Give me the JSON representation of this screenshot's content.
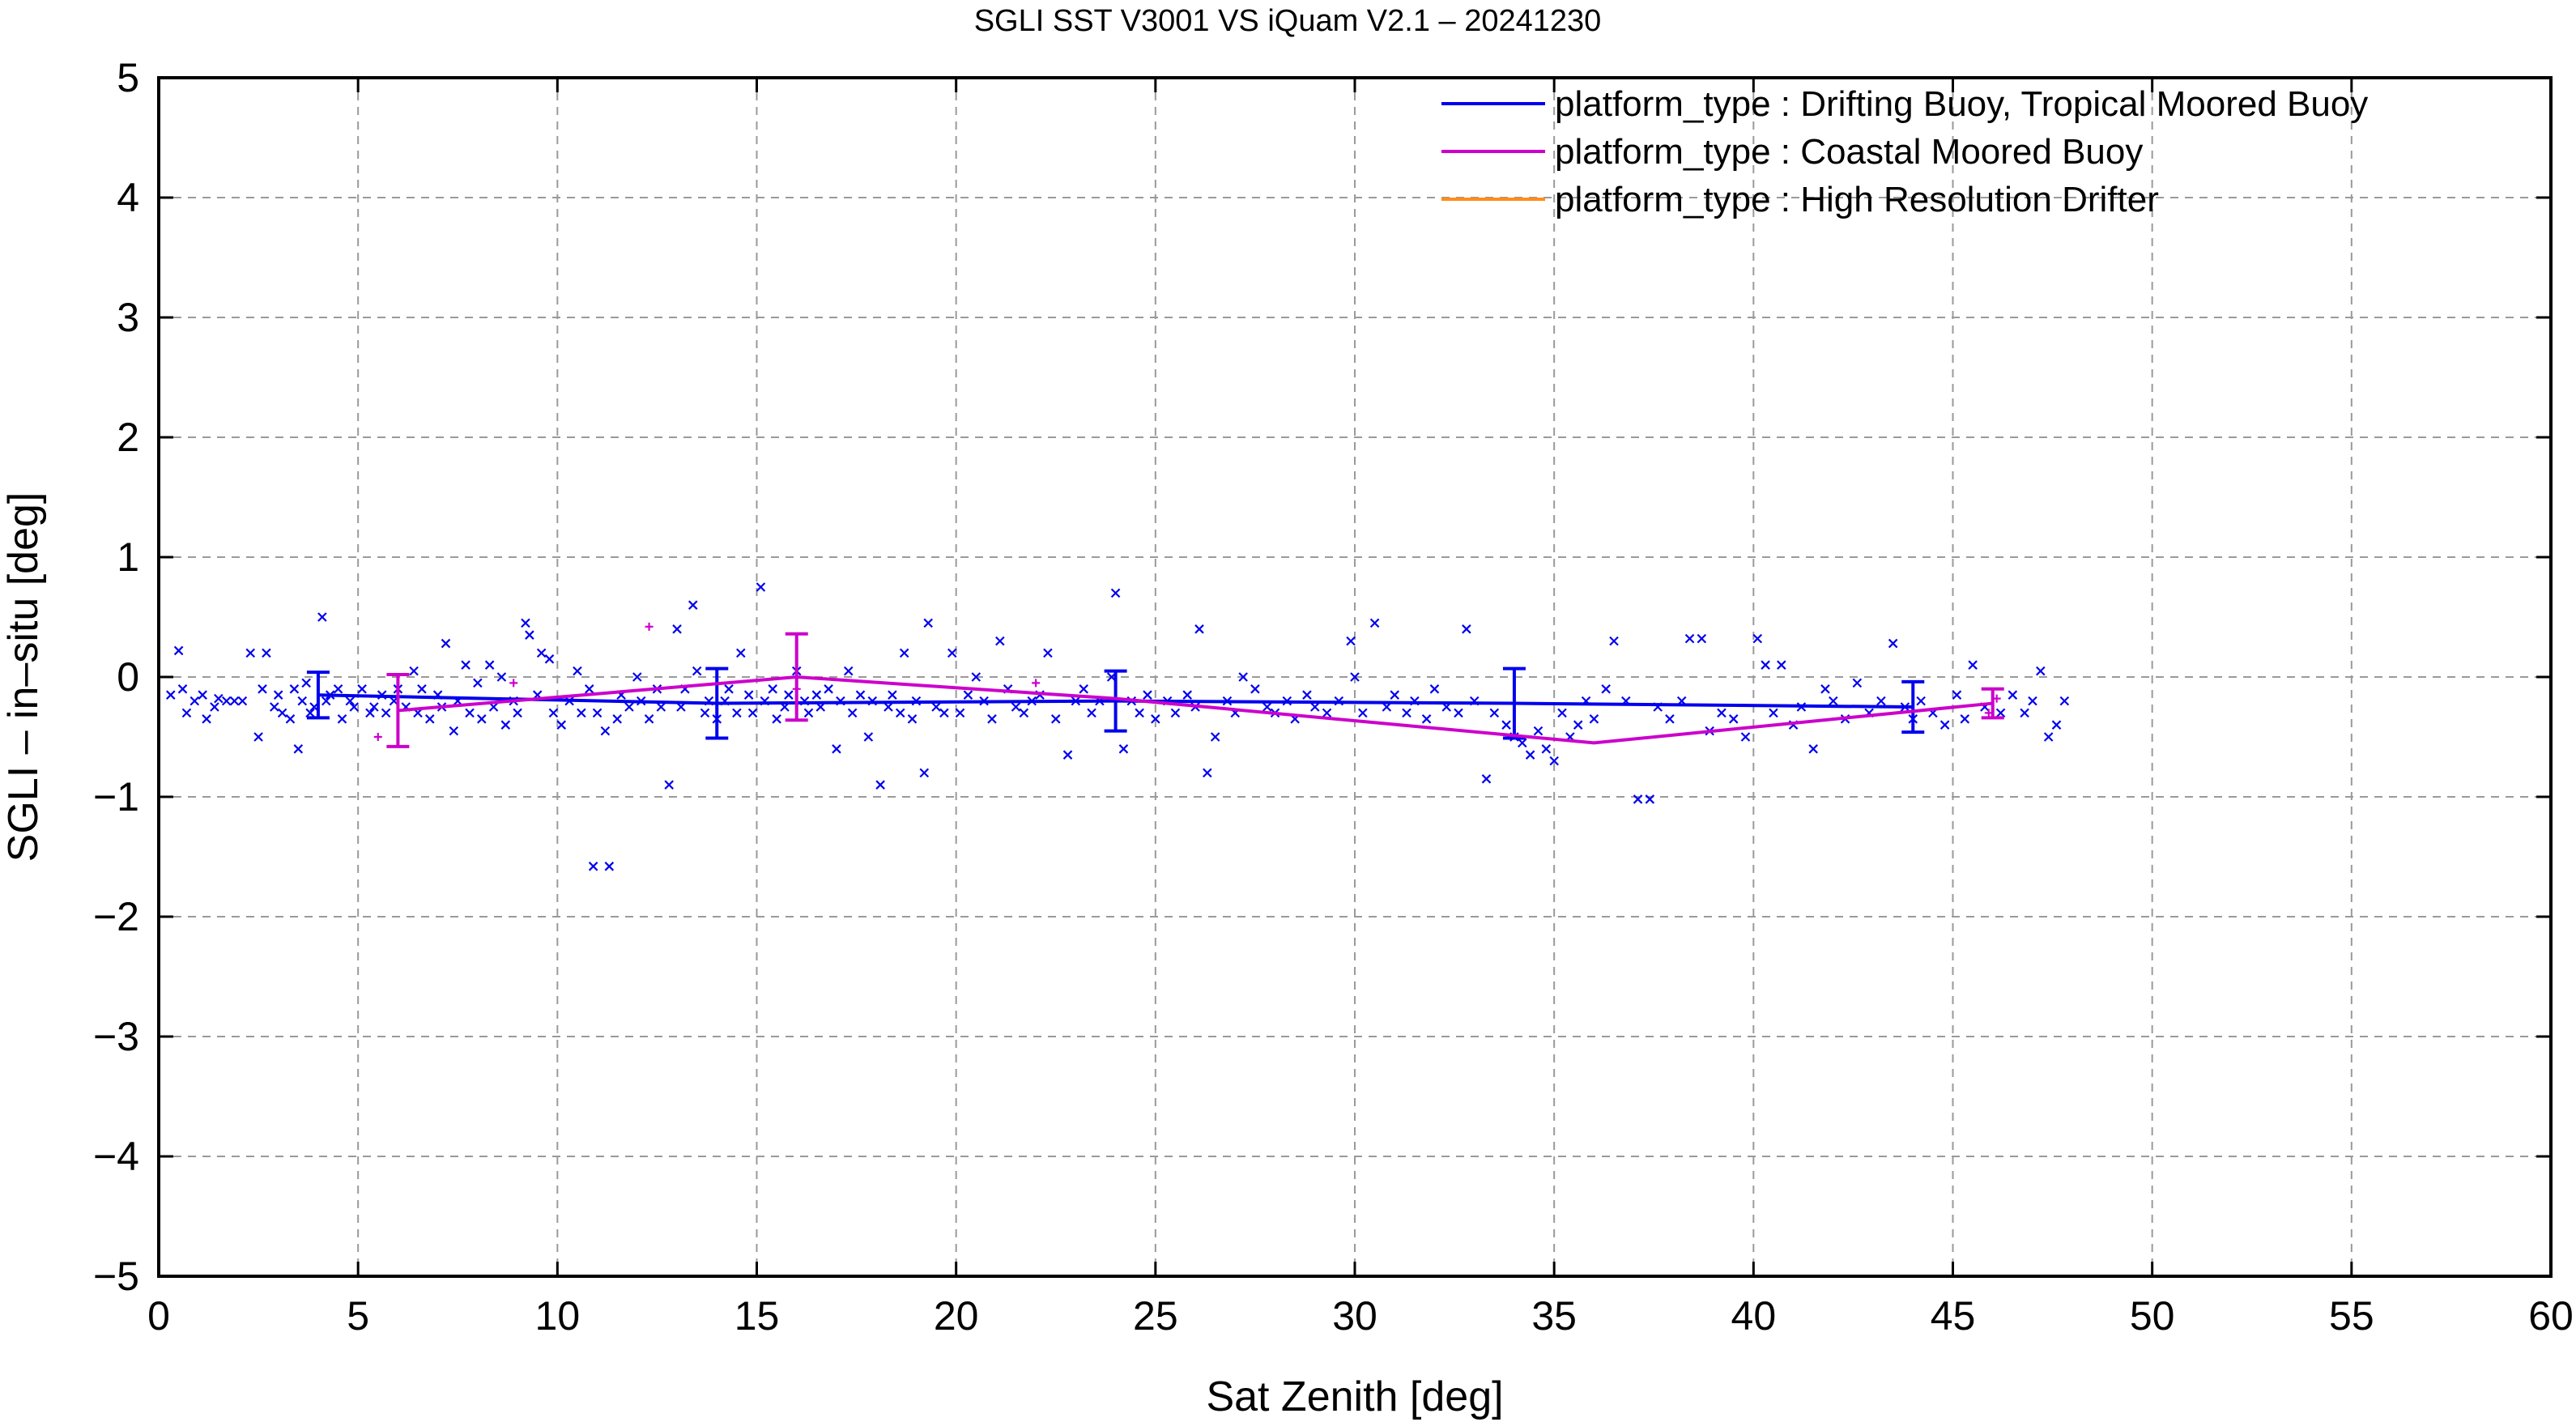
{
  "chart_data": {
    "type": "scatter",
    "title": "SGLI SST V3001 VS iQuam V2.1  – 20241230",
    "xlabel": "Sat Zenith [deg]",
    "ylabel": "SGLI – in–situ [deg]",
    "xlim": [
      0,
      60
    ],
    "ylim": [
      -5,
      5
    ],
    "xticks": [
      0,
      5,
      10,
      15,
      20,
      25,
      30,
      35,
      40,
      45,
      50,
      55,
      60
    ],
    "yticks": [
      -5,
      -4,
      -3,
      -2,
      -1,
      0,
      1,
      2,
      3,
      4,
      5
    ],
    "xtick_labels": [
      "0",
      "5",
      "10",
      "15",
      "20",
      "25",
      "30",
      "35",
      "40",
      "45",
      "50",
      "55",
      "60"
    ],
    "ytick_labels": [
      "−5",
      "−4",
      "−3",
      "−2",
      "−1",
      "0",
      "1",
      "2",
      "3",
      "4",
      "5"
    ],
    "grid": true,
    "legend_position": "top-right",
    "series": [
      {
        "name": "platform_type : Drifting Buoy, Tropical Moored Buoy",
        "color": "#0000ee",
        "marker": "x",
        "mean_line": {
          "x": [
            4,
            14,
            24,
            34,
            44
          ],
          "y": [
            -0.15,
            -0.22,
            -0.2,
            -0.22,
            -0.25
          ],
          "err": [
            0.19,
            0.29,
            0.25,
            0.29,
            0.21
          ]
        },
        "points": [
          [
            0.3,
            -0.15
          ],
          [
            0.5,
            0.22
          ],
          [
            0.6,
            -0.1
          ],
          [
            0.7,
            -0.3
          ],
          [
            0.9,
            -0.2
          ],
          [
            1.1,
            -0.15
          ],
          [
            1.2,
            -0.35
          ],
          [
            1.4,
            -0.25
          ],
          [
            1.5,
            -0.18
          ],
          [
            1.7,
            -0.2
          ],
          [
            1.9,
            -0.2
          ],
          [
            2.1,
            -0.2
          ],
          [
            2.3,
            0.2
          ],
          [
            2.5,
            -0.5
          ],
          [
            2.6,
            -0.1
          ],
          [
            2.7,
            0.2
          ],
          [
            2.9,
            -0.25
          ],
          [
            3.0,
            -0.15
          ],
          [
            3.1,
            -0.3
          ],
          [
            3.3,
            -0.35
          ],
          [
            3.4,
            -0.1
          ],
          [
            3.5,
            -0.6
          ],
          [
            3.6,
            -0.2
          ],
          [
            3.7,
            -0.05
          ],
          [
            3.8,
            -0.3
          ],
          [
            3.9,
            -0.25
          ],
          [
            4.1,
            0.5
          ],
          [
            4.2,
            -0.2
          ],
          [
            4.3,
            -0.15
          ],
          [
            4.5,
            -0.1
          ],
          [
            4.6,
            -0.35
          ],
          [
            4.8,
            -0.2
          ],
          [
            4.9,
            -0.25
          ],
          [
            5.1,
            -0.1
          ],
          [
            5.3,
            -0.3
          ],
          [
            5.4,
            -0.25
          ],
          [
            5.6,
            -0.15
          ],
          [
            5.7,
            -0.3
          ],
          [
            5.9,
            -0.2
          ],
          [
            6.0,
            -0.1
          ],
          [
            6.2,
            -0.25
          ],
          [
            6.4,
            0.05
          ],
          [
            6.5,
            -0.3
          ],
          [
            6.6,
            -0.1
          ],
          [
            6.8,
            -0.35
          ],
          [
            7.0,
            -0.15
          ],
          [
            7.1,
            -0.25
          ],
          [
            7.2,
            0.28
          ],
          [
            7.4,
            -0.45
          ],
          [
            7.5,
            -0.2
          ],
          [
            7.7,
            0.1
          ],
          [
            7.8,
            -0.3
          ],
          [
            8.0,
            -0.05
          ],
          [
            8.1,
            -0.35
          ],
          [
            8.3,
            0.1
          ],
          [
            8.4,
            -0.25
          ],
          [
            8.6,
            0.0
          ],
          [
            8.7,
            -0.4
          ],
          [
            8.9,
            -0.2
          ],
          [
            9.0,
            -0.3
          ],
          [
            9.2,
            0.45
          ],
          [
            9.3,
            0.35
          ],
          [
            9.5,
            -0.15
          ],
          [
            9.6,
            0.2
          ],
          [
            9.8,
            0.15
          ],
          [
            9.9,
            -0.3
          ],
          [
            10.1,
            -0.4
          ],
          [
            10.3,
            -0.2
          ],
          [
            10.5,
            0.05
          ],
          [
            10.6,
            -0.3
          ],
          [
            10.8,
            -0.1
          ],
          [
            10.9,
            -1.58
          ],
          [
            11.0,
            -0.3
          ],
          [
            11.2,
            -0.45
          ],
          [
            11.3,
            -1.58
          ],
          [
            11.5,
            -0.35
          ],
          [
            11.6,
            -0.15
          ],
          [
            11.8,
            -0.25
          ],
          [
            12.0,
            0.0
          ],
          [
            12.1,
            -0.2
          ],
          [
            12.3,
            -0.35
          ],
          [
            12.5,
            -0.1
          ],
          [
            12.6,
            -0.25
          ],
          [
            12.8,
            -0.9
          ],
          [
            13.0,
            0.4
          ],
          [
            13.1,
            -0.25
          ],
          [
            13.2,
            -0.1
          ],
          [
            13.4,
            0.6
          ],
          [
            13.5,
            0.05
          ],
          [
            13.7,
            -0.3
          ],
          [
            13.8,
            -0.2
          ],
          [
            14.0,
            -0.35
          ],
          [
            14.2,
            -0.2
          ],
          [
            14.3,
            -0.1
          ],
          [
            14.5,
            -0.3
          ],
          [
            14.6,
            0.2
          ],
          [
            14.8,
            -0.15
          ],
          [
            14.9,
            -0.3
          ],
          [
            15.1,
            0.75
          ],
          [
            15.2,
            -0.2
          ],
          [
            15.4,
            -0.1
          ],
          [
            15.5,
            -0.35
          ],
          [
            15.7,
            -0.25
          ],
          [
            15.8,
            -0.15
          ],
          [
            16.0,
            0.05
          ],
          [
            16.2,
            -0.2
          ],
          [
            16.3,
            -0.3
          ],
          [
            16.5,
            -0.15
          ],
          [
            16.6,
            -0.25
          ],
          [
            16.8,
            -0.1
          ],
          [
            17.0,
            -0.6
          ],
          [
            17.1,
            -0.2
          ],
          [
            17.3,
            0.05
          ],
          [
            17.4,
            -0.3
          ],
          [
            17.6,
            -0.15
          ],
          [
            17.8,
            -0.5
          ],
          [
            17.9,
            -0.2
          ],
          [
            18.1,
            -0.9
          ],
          [
            18.3,
            -0.25
          ],
          [
            18.4,
            -0.15
          ],
          [
            18.6,
            -0.3
          ],
          [
            18.7,
            0.2
          ],
          [
            18.9,
            -0.35
          ],
          [
            19.0,
            -0.2
          ],
          [
            19.2,
            -0.8
          ],
          [
            19.3,
            0.45
          ],
          [
            19.5,
            -0.25
          ],
          [
            19.7,
            -0.3
          ],
          [
            19.9,
            0.2
          ],
          [
            20.1,
            -0.3
          ],
          [
            20.3,
            -0.15
          ],
          [
            20.5,
            0.0
          ],
          [
            20.7,
            -0.2
          ],
          [
            20.9,
            -0.35
          ],
          [
            21.1,
            0.3
          ],
          [
            21.3,
            -0.1
          ],
          [
            21.5,
            -0.25
          ],
          [
            21.7,
            -0.3
          ],
          [
            21.9,
            -0.2
          ],
          [
            22.1,
            -0.15
          ],
          [
            22.3,
            0.2
          ],
          [
            22.5,
            -0.35
          ],
          [
            22.8,
            -0.65
          ],
          [
            23.0,
            -0.2
          ],
          [
            23.2,
            -0.1
          ],
          [
            23.4,
            -0.3
          ],
          [
            23.6,
            -0.2
          ],
          [
            23.9,
            0.0
          ],
          [
            24.0,
            0.7
          ],
          [
            24.2,
            -0.6
          ],
          [
            24.4,
            -0.2
          ],
          [
            24.6,
            -0.3
          ],
          [
            24.8,
            -0.15
          ],
          [
            25.0,
            -0.35
          ],
          [
            25.3,
            -0.2
          ],
          [
            25.5,
            -0.3
          ],
          [
            25.8,
            -0.15
          ],
          [
            26.0,
            -0.25
          ],
          [
            26.1,
            0.4
          ],
          [
            26.3,
            -0.8
          ],
          [
            26.5,
            -0.5
          ],
          [
            26.8,
            -0.2
          ],
          [
            27.0,
            -0.3
          ],
          [
            27.2,
            0.0
          ],
          [
            27.5,
            -0.1
          ],
          [
            27.8,
            -0.25
          ],
          [
            28.0,
            -0.3
          ],
          [
            28.3,
            -0.2
          ],
          [
            28.5,
            -0.35
          ],
          [
            28.8,
            -0.15
          ],
          [
            29.0,
            -0.25
          ],
          [
            29.3,
            -0.3
          ],
          [
            29.6,
            -0.2
          ],
          [
            29.9,
            0.3
          ],
          [
            30.0,
            0.0
          ],
          [
            30.2,
            -0.3
          ],
          [
            30.5,
            0.45
          ],
          [
            30.8,
            -0.25
          ],
          [
            31.0,
            -0.15
          ],
          [
            31.3,
            -0.3
          ],
          [
            31.5,
            -0.2
          ],
          [
            31.8,
            -0.35
          ],
          [
            32.0,
            -0.1
          ],
          [
            32.3,
            -0.25
          ],
          [
            32.6,
            -0.3
          ],
          [
            32.8,
            0.4
          ],
          [
            33.0,
            -0.2
          ],
          [
            33.3,
            -0.85
          ],
          [
            33.5,
            -0.3
          ],
          [
            33.8,
            -0.4
          ],
          [
            34.0,
            -0.5
          ],
          [
            34.2,
            -0.55
          ],
          [
            34.4,
            -0.65
          ],
          [
            34.6,
            -0.45
          ],
          [
            34.8,
            -0.6
          ],
          [
            35.0,
            -0.7
          ],
          [
            35.2,
            -0.3
          ],
          [
            35.4,
            -0.5
          ],
          [
            35.6,
            -0.4
          ],
          [
            35.8,
            -0.2
          ],
          [
            36.0,
            -0.35
          ],
          [
            36.3,
            -0.1
          ],
          [
            36.5,
            0.3
          ],
          [
            36.8,
            -0.2
          ],
          [
            37.1,
            -1.02
          ],
          [
            37.4,
            -1.02
          ],
          [
            37.6,
            -0.25
          ],
          [
            37.9,
            -0.35
          ],
          [
            38.2,
            -0.2
          ],
          [
            38.4,
            0.32
          ],
          [
            38.7,
            0.32
          ],
          [
            38.9,
            -0.45
          ],
          [
            39.2,
            -0.3
          ],
          [
            39.5,
            -0.35
          ],
          [
            39.8,
            -0.5
          ],
          [
            40.1,
            0.32
          ],
          [
            40.3,
            0.1
          ],
          [
            40.5,
            -0.3
          ],
          [
            40.7,
            0.1
          ],
          [
            41.0,
            -0.4
          ],
          [
            41.2,
            -0.25
          ],
          [
            41.5,
            -0.6
          ],
          [
            41.8,
            -0.1
          ],
          [
            42.0,
            -0.2
          ],
          [
            42.3,
            -0.35
          ],
          [
            42.6,
            -0.05
          ],
          [
            42.9,
            -0.3
          ],
          [
            43.2,
            -0.2
          ],
          [
            43.5,
            0.28
          ],
          [
            43.8,
            -0.25
          ],
          [
            44.0,
            -0.35
          ],
          [
            44.2,
            -0.2
          ],
          [
            44.5,
            -0.3
          ],
          [
            44.8,
            -0.4
          ],
          [
            45.1,
            -0.15
          ],
          [
            45.3,
            -0.35
          ],
          [
            45.5,
            0.1
          ],
          [
            45.8,
            -0.25
          ],
          [
            46.2,
            -0.3
          ],
          [
            46.5,
            -0.15
          ],
          [
            46.8,
            -0.3
          ],
          [
            47.0,
            -0.2
          ],
          [
            47.2,
            0.05
          ],
          [
            47.4,
            -0.5
          ],
          [
            47.6,
            -0.4
          ],
          [
            47.8,
            -0.2
          ]
        ]
      },
      {
        "name": "platform_type : Coastal Moored Buoy",
        "color": "#cc00cc",
        "marker": "+",
        "mean_line": {
          "x": [
            6,
            16,
            24,
            36,
            46
          ],
          "y": [
            -0.28,
            0.0,
            -0.18,
            -0.55,
            -0.22
          ],
          "err": [
            0.3,
            0.36,
            0.0,
            0.0,
            0.12
          ]
        },
        "points": [
          [
            5.5,
            -0.5
          ],
          [
            8.9,
            -0.05
          ],
          [
            12.3,
            0.42
          ],
          [
            16.0,
            -0.1
          ],
          [
            22.0,
            -0.05
          ],
          [
            45.9,
            -0.3
          ],
          [
            46.1,
            -0.18
          ]
        ]
      },
      {
        "name": "platform_type : High Resolution Drifter",
        "color": "#ff8c1a",
        "marker": "x",
        "mean_line": {
          "x": [],
          "y": [],
          "err": []
        },
        "points": []
      }
    ]
  }
}
